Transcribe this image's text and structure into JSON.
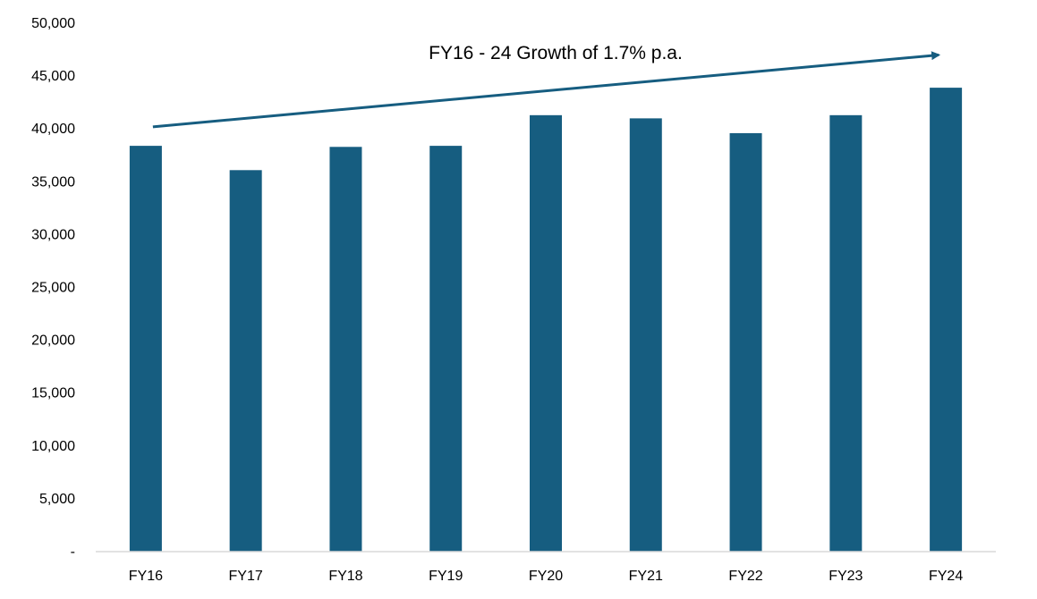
{
  "chart_data": {
    "type": "bar",
    "title": "",
    "xlabel": "",
    "ylabel": "",
    "categories": [
      "FY16",
      "FY17",
      "FY18",
      "FY19",
      "FY20",
      "FY21",
      "FY22",
      "FY23",
      "FY24"
    ],
    "values": [
      38400,
      36100,
      38300,
      38400,
      41300,
      41000,
      39600,
      41300,
      43900
    ],
    "ylim": [
      0,
      50000
    ],
    "yticks": [
      0,
      5000,
      10000,
      15000,
      20000,
      25000,
      30000,
      35000,
      40000,
      45000,
      50000
    ],
    "ytick_labels": [
      "-",
      "5,000",
      "10,000",
      "15,000",
      "20,000",
      "25,000",
      "30,000",
      "35,000",
      "40,000",
      "45,000",
      "50,000"
    ],
    "grid": false,
    "legend": "none",
    "annotation": {
      "text": "FY16 - 24 Growth of 1.7% p.a.",
      "arrow_start": {
        "category": "FY16",
        "value": 40200
      },
      "arrow_end": {
        "category": "FY24",
        "value": 47000
      }
    },
    "colors": {
      "bar": "#165d80",
      "arrow": "#165d80",
      "axis": "#d9d9d9"
    }
  }
}
